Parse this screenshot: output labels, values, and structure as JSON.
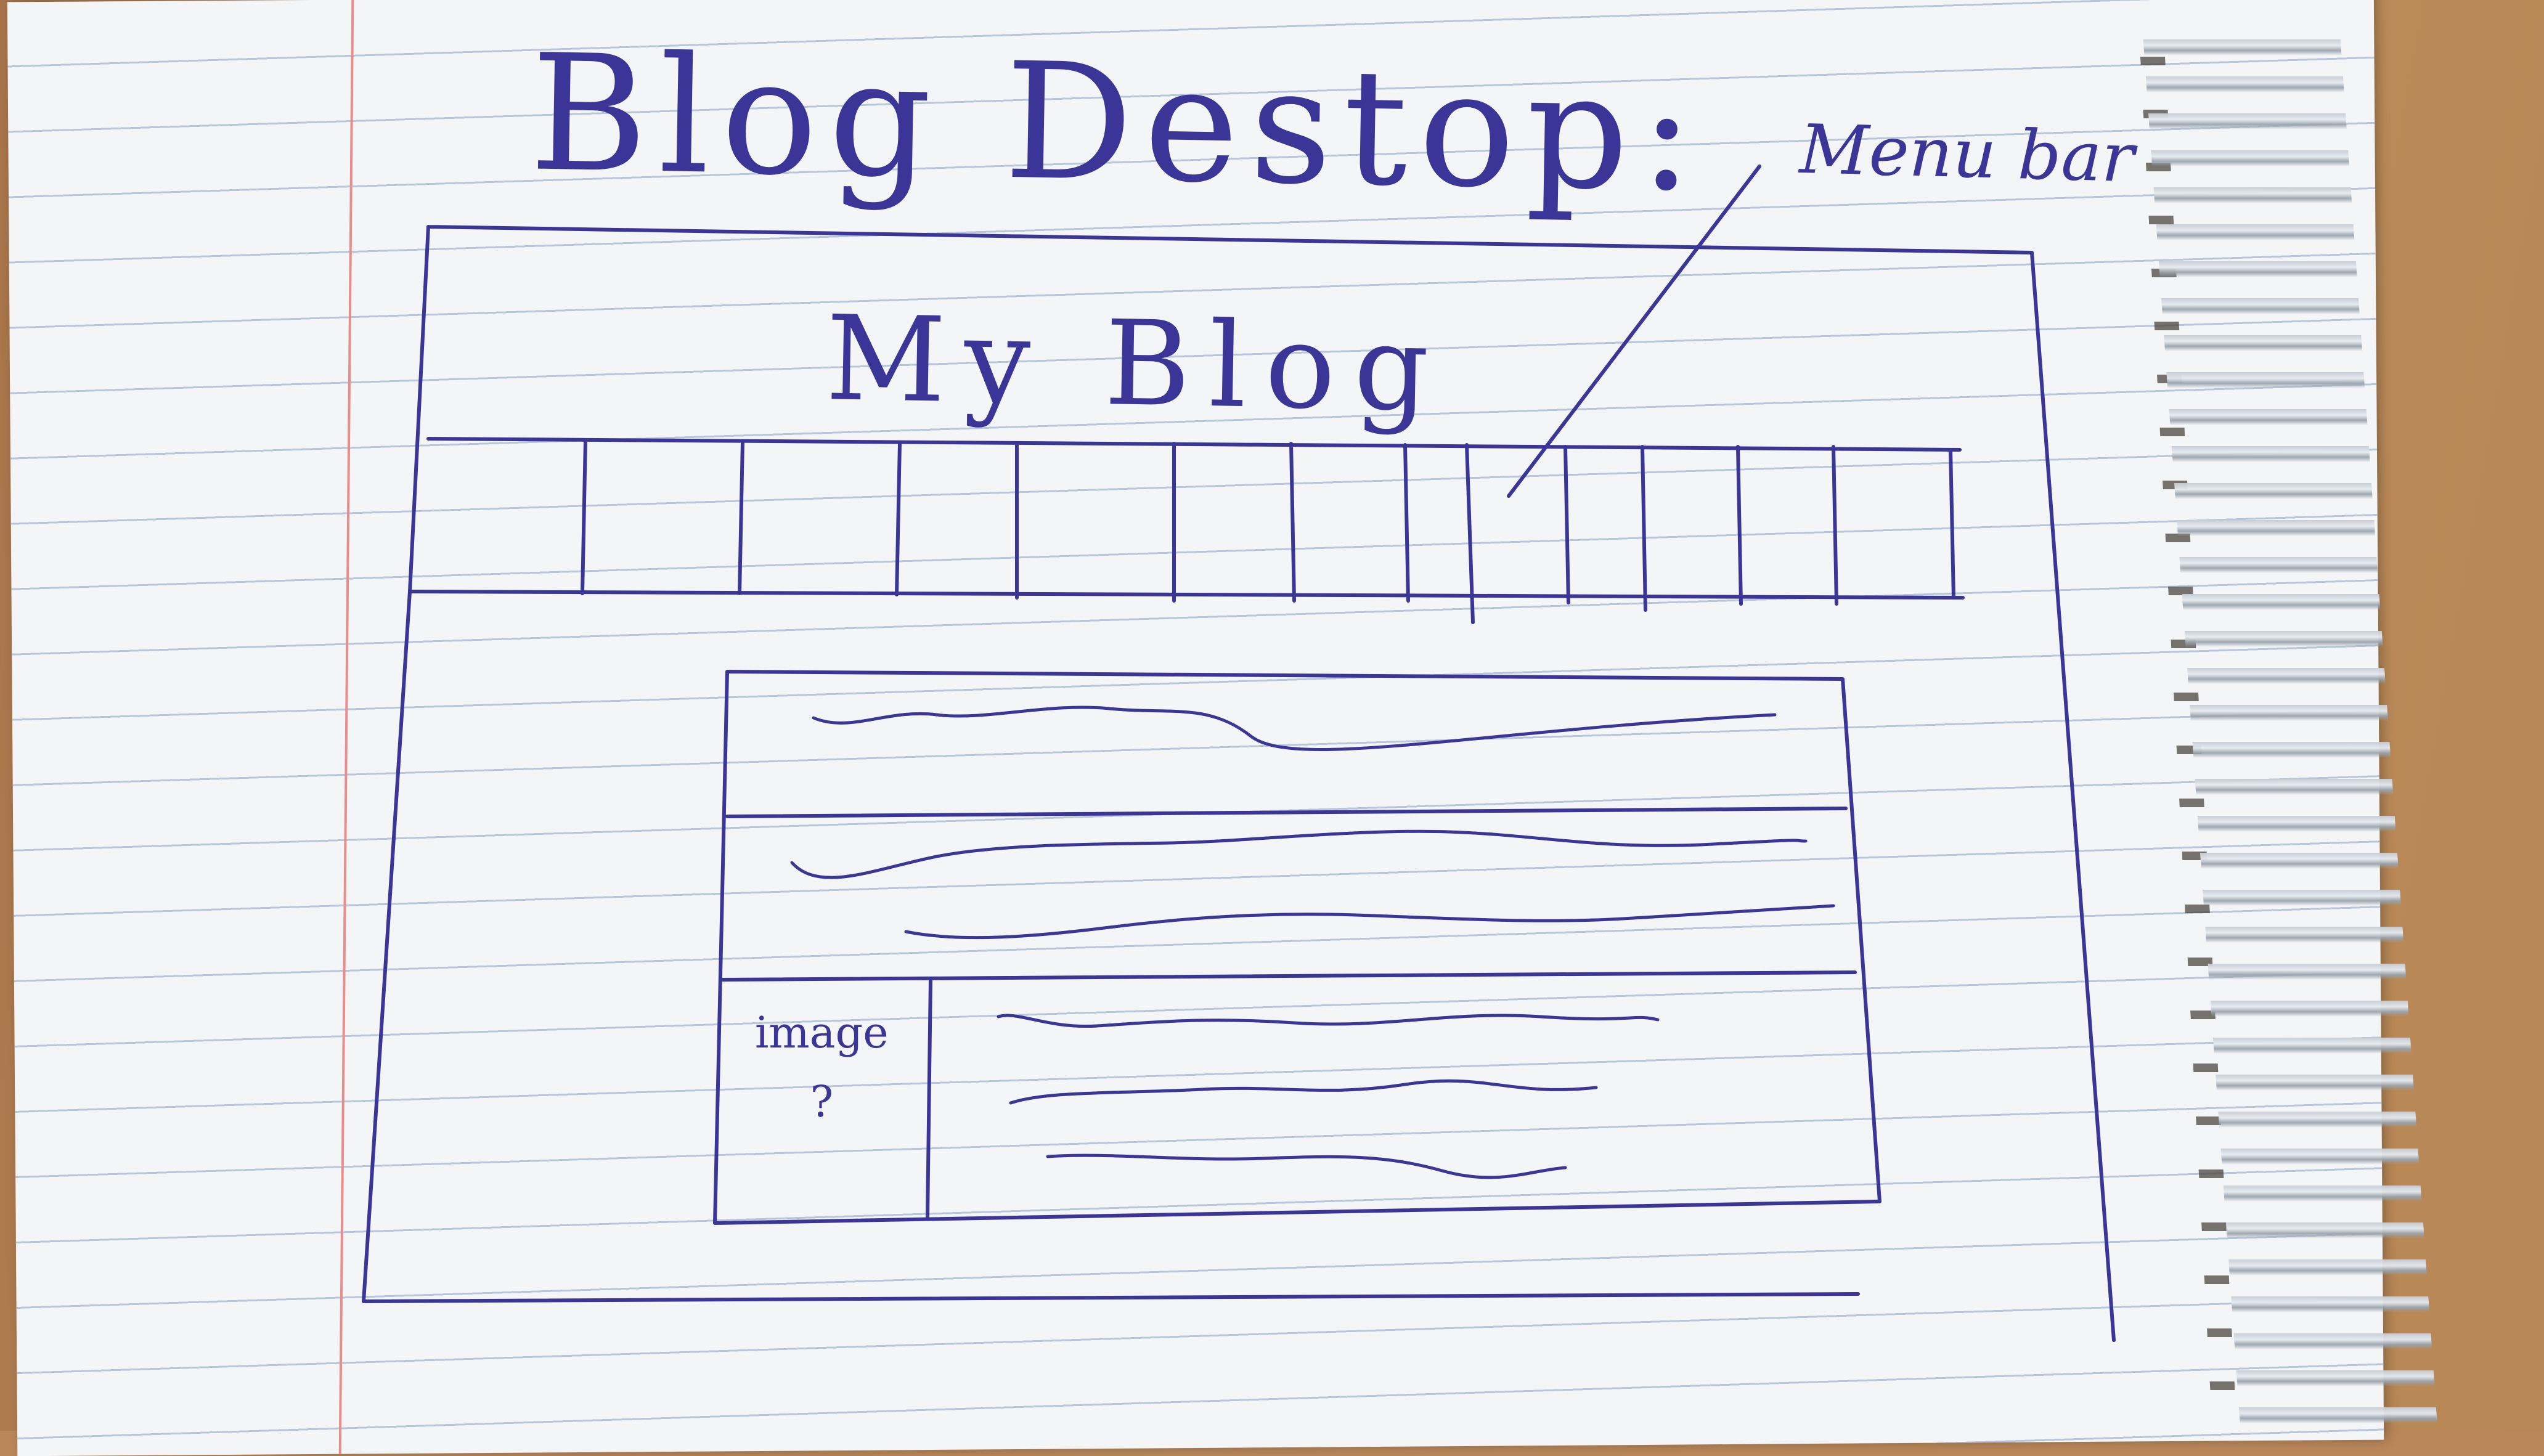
{
  "sketch": {
    "title": "Blog Destop:",
    "annotation": "Menu bar",
    "blog_title": "My Blog",
    "image_label_line1": "image",
    "image_label_line2": "?"
  },
  "colors": {
    "ink": "#3b3597",
    "paper": "#f4f5f6",
    "rule_lines": "#b7c6dc",
    "margin_line": "#e98c8c",
    "desk": "#b9875a"
  }
}
